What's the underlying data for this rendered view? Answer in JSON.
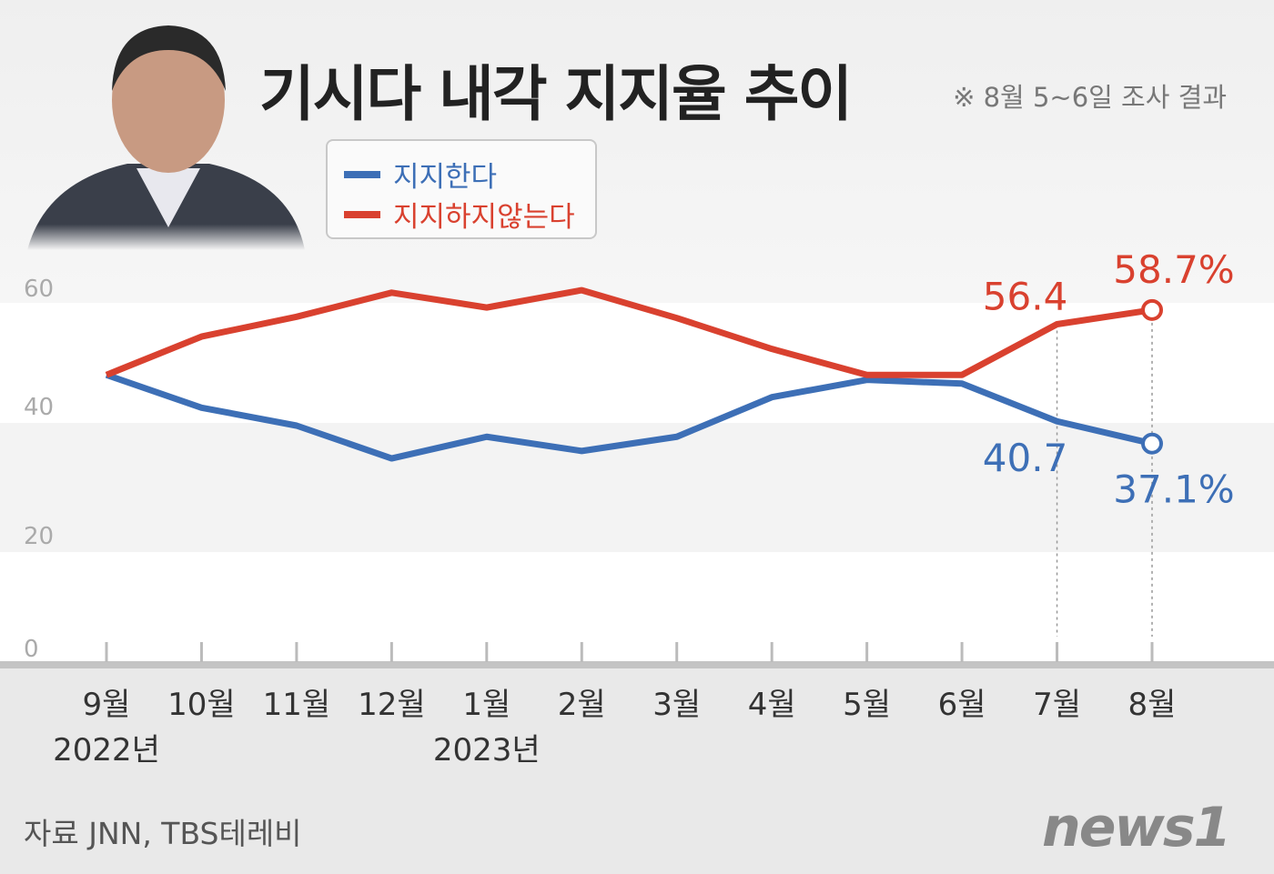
{
  "header": {
    "title": "기시다 내각 지지율 추이",
    "note": "※ 8월 5~6일 조사 결과"
  },
  "footer": {
    "source": "자료 JNN, TBS테레비",
    "logo": "news1"
  },
  "chart_data": {
    "type": "line",
    "title": "기시다 내각 지지율 추이",
    "categories": [
      "9월",
      "10월",
      "11월",
      "12월",
      "1월",
      "2월",
      "3월",
      "4월",
      "5월",
      "6월",
      "7월",
      "8월"
    ],
    "year_labels": [
      {
        "category": "9월",
        "label": "2022년"
      },
      {
        "category": "1월",
        "label": "2023년"
      }
    ],
    "yticks": [
      "0",
      "20",
      "40",
      "60"
    ],
    "ylim": [
      0,
      60
    ],
    "grid": "alternating bands",
    "legend_position": "top-left",
    "series": [
      {
        "name": "지지한다",
        "color": "#3d6fb6",
        "values": [
          48.2,
          42.9,
          40.0,
          34.7,
          38.2,
          35.9,
          38.2,
          44.6,
          47.4,
          46.8,
          40.7,
          37.1
        ]
      },
      {
        "name": "지지하지않는다",
        "color": "#d9412f",
        "values": [
          48.2,
          54.4,
          57.6,
          61.5,
          59.1,
          61.9,
          57.4,
          52.4,
          48.2,
          48.2,
          56.4,
          58.7
        ]
      }
    ],
    "annotations": [
      {
        "series": 1,
        "category": "7월",
        "label": "56.4"
      },
      {
        "series": 1,
        "category": "8월",
        "label": "58.7%"
      },
      {
        "series": 0,
        "category": "7월",
        "label": "40.7"
      },
      {
        "series": 0,
        "category": "8월",
        "label": "37.1%"
      }
    ]
  }
}
